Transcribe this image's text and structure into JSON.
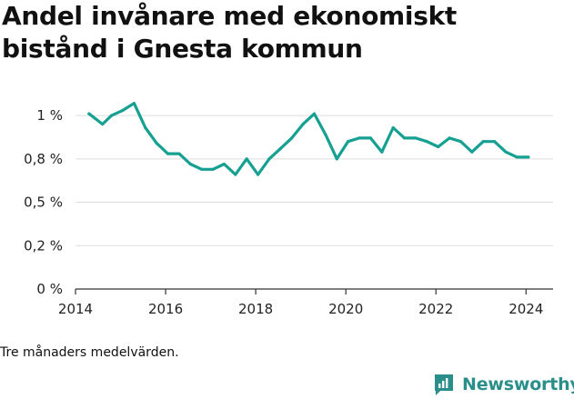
{
  "chart_data": {
    "type": "line",
    "title": "Andel invånare med ekonomiskt bistånd i Gnesta kommun",
    "xlabel": "",
    "ylabel": "",
    "x_range": [
      2014,
      2024.6
    ],
    "ylim": [
      0,
      1.1
    ],
    "grid": true,
    "legend": "none",
    "colors": {
      "line": "#15a092",
      "grid": "#dddddd",
      "axis": "#333333"
    },
    "x_ticks": [
      {
        "value": 2014,
        "label": "2014"
      },
      {
        "value": 2016,
        "label": "2016"
      },
      {
        "value": 2018,
        "label": "2018"
      },
      {
        "value": 2020,
        "label": "2020"
      },
      {
        "value": 2022,
        "label": "2022"
      },
      {
        "value": 2024,
        "label": "2024"
      }
    ],
    "y_ticks": [
      {
        "value": 0,
        "label": "0 %"
      },
      {
        "value": 0.25,
        "label": "0,2 %"
      },
      {
        "value": 0.5,
        "label": "0,5 %"
      },
      {
        "value": 0.75,
        "label": "0,8 %"
      },
      {
        "value": 1.0,
        "label": "1 %"
      }
    ],
    "series": [
      {
        "x": [
          2014.3,
          2014.6,
          2014.8,
          2015.05,
          2015.3,
          2015.55,
          2015.8,
          2016.05,
          2016.3,
          2016.55,
          2016.8,
          2017.05,
          2017.3,
          2017.55,
          2017.8,
          2018.05,
          2018.3,
          2018.55,
          2018.8,
          2019.05,
          2019.3,
          2019.55,
          2019.8,
          2020.05,
          2020.3,
          2020.55,
          2020.8,
          2021.05,
          2021.3,
          2021.55,
          2021.8,
          2022.05,
          2022.3,
          2022.55,
          2022.8,
          2023.05,
          2023.3,
          2023.55,
          2023.8,
          2024.05
        ],
        "values": [
          1.01,
          0.95,
          1.0,
          1.03,
          1.07,
          0.93,
          0.84,
          0.78,
          0.78,
          0.72,
          0.69,
          0.69,
          0.72,
          0.66,
          0.75,
          0.66,
          0.75,
          0.81,
          0.87,
          0.95,
          1.01,
          0.89,
          0.75,
          0.85,
          0.87,
          0.87,
          0.79,
          0.93,
          0.87,
          0.87,
          0.85,
          0.82,
          0.87,
          0.85,
          0.79,
          0.85,
          0.85,
          0.79,
          0.76,
          0.76
        ]
      }
    ]
  },
  "footer": {
    "note": "Tre månaders medelvärden.",
    "brand_name": "Newsworthy",
    "brand_icon": "newsworthy-logo-icon"
  }
}
